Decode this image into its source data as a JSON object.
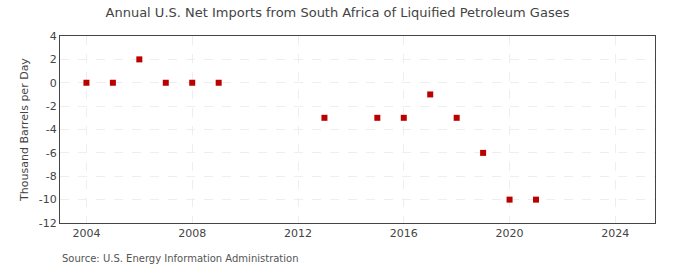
{
  "chart_data": {
    "type": "scatter",
    "title": "Annual U.S. Net Imports from South Africa of Liquified Petroleum Gases",
    "y_label": "Thousand Barrels per Day",
    "annotations": [
      "Source: U.S. Energy Information Administration"
    ],
    "x": [
      2004,
      2005,
      2006,
      2007,
      2008,
      2009,
      2013,
      2015,
      2016,
      2017,
      2018,
      2019,
      2020,
      2021
    ],
    "values": [
      0,
      0,
      2,
      0,
      0,
      0,
      -3,
      -3,
      -3,
      -1,
      -3,
      -6,
      -10,
      -10
    ],
    "color": "#bb0000",
    "marker": "square",
    "xlim": [
      2003,
      2025.5
    ],
    "ylim": [
      -12,
      4
    ],
    "xticks": [
      2004,
      2008,
      2012,
      2016,
      2020,
      2024
    ],
    "yticks": [
      4,
      2,
      0,
      -2,
      -4,
      -6,
      -8,
      -10,
      -12
    ],
    "grid": true
  }
}
